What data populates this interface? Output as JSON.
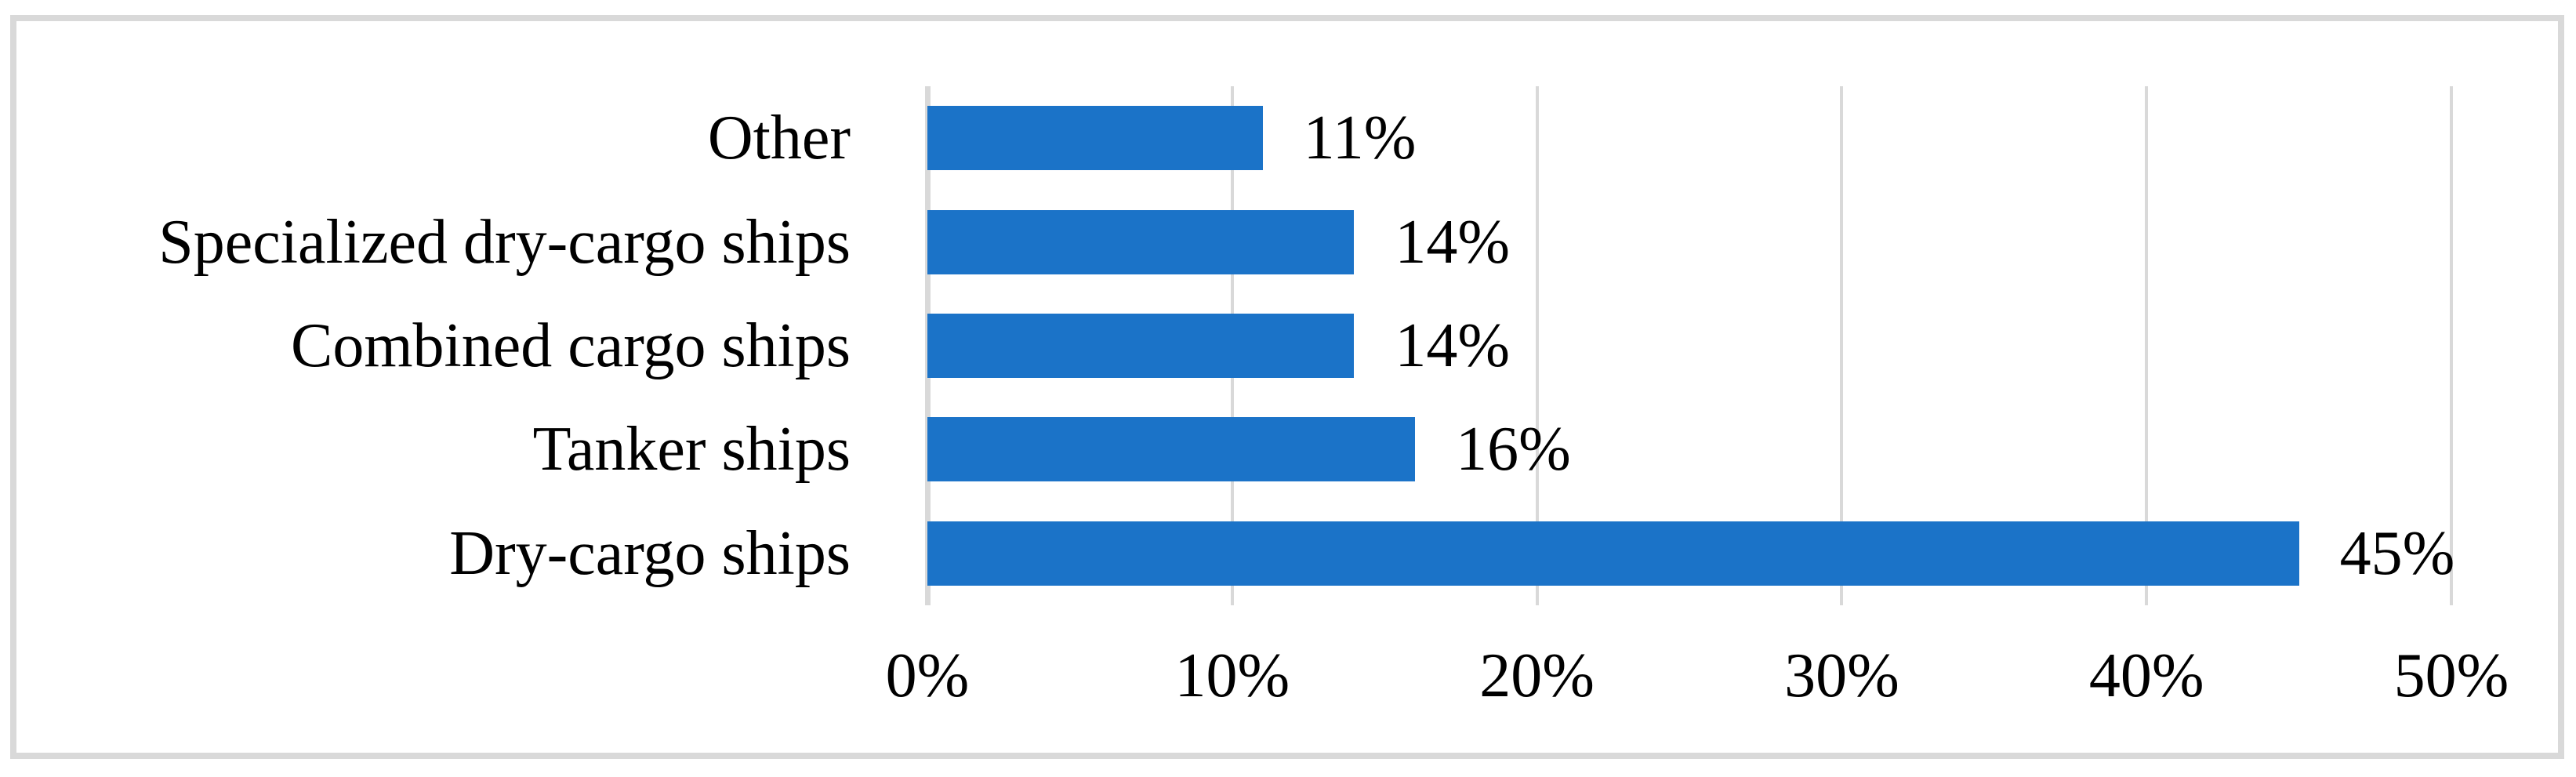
{
  "chart_data": {
    "type": "bar",
    "orientation": "horizontal",
    "title": "",
    "xlabel": "",
    "ylabel": "",
    "categories": [
      "Other",
      "Specialized dry-cargo ships",
      "Combined cargo ships",
      "Tanker ships",
      "Dry-cargo ships"
    ],
    "values": [
      11,
      14,
      14,
      16,
      45
    ],
    "value_labels": [
      "11%",
      "14%",
      "14%",
      "16%",
      "45%"
    ],
    "x_tick_labels": [
      "0%",
      "10%",
      "20%",
      "30%",
      "40%",
      "50%"
    ],
    "x_tick_values": [
      0,
      10,
      20,
      30,
      40,
      50
    ],
    "xlim": [
      0,
      50
    ],
    "grid": true,
    "legend": "none",
    "colors": {
      "bar": "#1B73C8",
      "gridline": "#D9D9D9",
      "axis_line": "#D9D9D9",
      "frame_border": "#D9D9D9",
      "text": "#000000",
      "background": "#FFFFFF"
    }
  }
}
